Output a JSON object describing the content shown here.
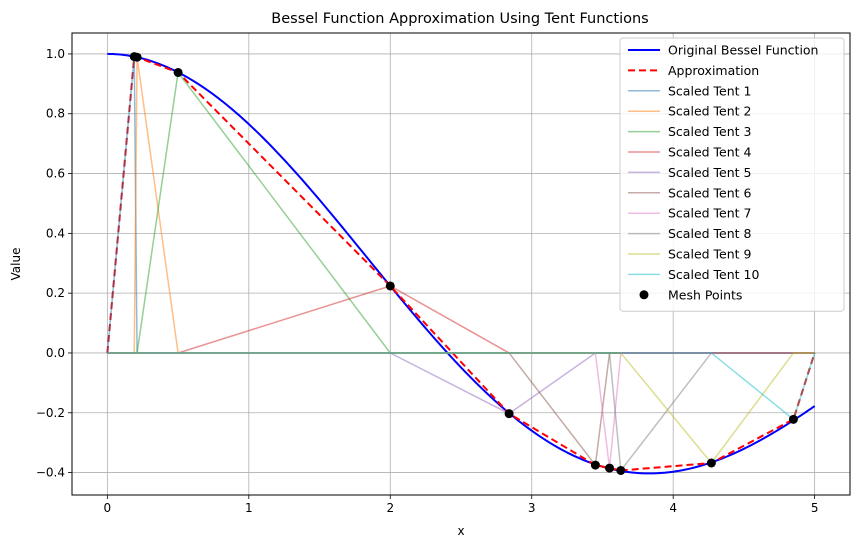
{
  "chart_data": {
    "type": "line",
    "title": "Bessel Function Approximation Using Tent Functions",
    "xlabel": "x",
    "ylabel": "Value",
    "xlim": [
      -0.25,
      5.25
    ],
    "ylim": [
      -0.475,
      1.07
    ],
    "xticks": [
      0,
      1,
      2,
      3,
      4,
      5
    ],
    "xtick_labels": [
      "0",
      "1",
      "2",
      "3",
      "4",
      "5"
    ],
    "yticks": [
      -0.4,
      -0.2,
      0.0,
      0.2,
      0.4,
      0.6,
      0.8,
      1.0
    ],
    "ytick_labels": [
      "−0.4",
      "−0.2",
      "0.0",
      "0.2",
      "0.4",
      "0.6",
      "0.8",
      "1.0"
    ],
    "grid": true,
    "legend_position": "top-right",
    "mesh_x": [
      0,
      0.19,
      0.21,
      0.5,
      2.0,
      2.84,
      3.45,
      3.55,
      3.63,
      4.27,
      4.85,
      5.0
    ],
    "bessel_function": "J0",
    "series": [
      {
        "name": "Original Bessel Function",
        "kind": "function",
        "color": "#0000ff",
        "style": "solid",
        "x_range": [
          0,
          5
        ]
      },
      {
        "name": "Approximation",
        "kind": "polyline",
        "color": "#ff0000",
        "style": "dashed",
        "x": [
          0,
          0.19,
          0.21,
          0.5,
          2.0,
          2.84,
          3.45,
          3.55,
          3.63,
          4.27,
          4.85,
          5.0
        ],
        "y": [
          0,
          0.991,
          0.989,
          0.938,
          0.224,
          -0.203,
          -0.375,
          -0.385,
          -0.393,
          -0.368,
          -0.222,
          0
        ]
      },
      {
        "name": "Scaled Tent 1",
        "kind": "tent",
        "index": 1,
        "color": "#1f77b4"
      },
      {
        "name": "Scaled Tent 2",
        "kind": "tent",
        "index": 2,
        "color": "#ff7f0e"
      },
      {
        "name": "Scaled Tent 3",
        "kind": "tent",
        "index": 3,
        "color": "#2ca02c"
      },
      {
        "name": "Scaled Tent 4",
        "kind": "tent",
        "index": 4,
        "color": "#d62728"
      },
      {
        "name": "Scaled Tent 5",
        "kind": "tent",
        "index": 5,
        "color": "#9467bd"
      },
      {
        "name": "Scaled Tent 6",
        "kind": "tent",
        "index": 6,
        "color": "#8c564b"
      },
      {
        "name": "Scaled Tent 7",
        "kind": "tent",
        "index": 7,
        "color": "#e377c2"
      },
      {
        "name": "Scaled Tent 8",
        "kind": "tent",
        "index": 8,
        "color": "#7f7f7f"
      },
      {
        "name": "Scaled Tent 9",
        "kind": "tent",
        "index": 9,
        "color": "#bcbd22"
      },
      {
        "name": "Scaled Tent 10",
        "kind": "tent",
        "index": 10,
        "color": "#17becf"
      },
      {
        "name": "Mesh Points",
        "kind": "scatter",
        "color": "#000000",
        "x": [
          0.19,
          0.21,
          0.5,
          2.0,
          2.84,
          3.45,
          3.55,
          3.63,
          4.27,
          4.85
        ],
        "y": [
          0.991,
          0.989,
          0.938,
          0.224,
          -0.203,
          -0.375,
          -0.385,
          -0.393,
          -0.368,
          -0.222
        ]
      }
    ]
  }
}
